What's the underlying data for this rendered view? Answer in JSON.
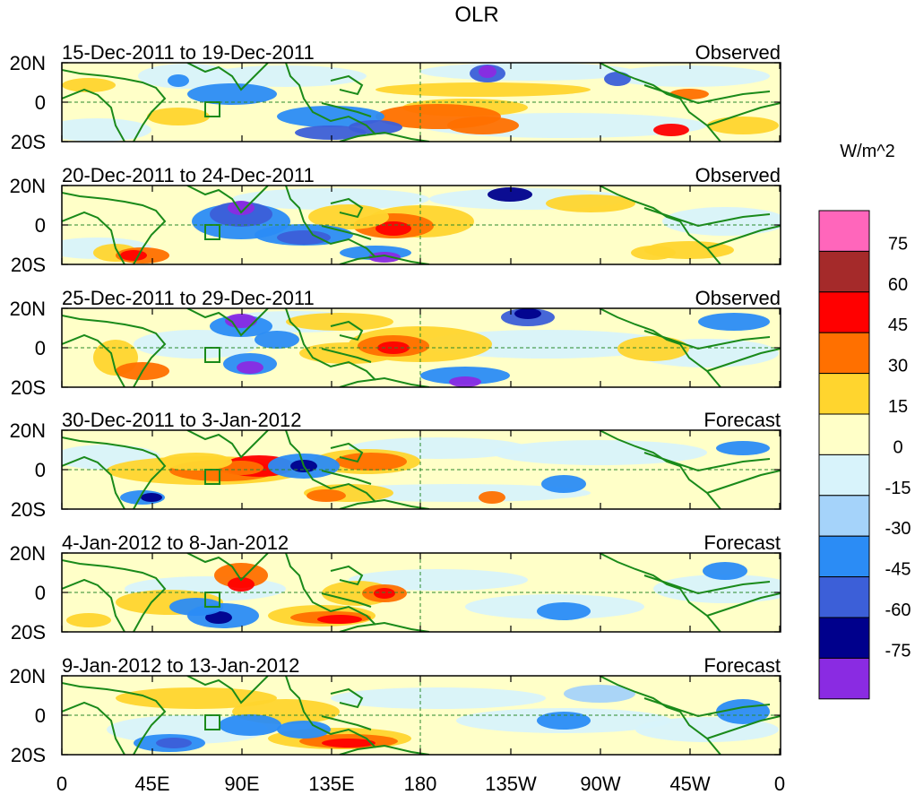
{
  "title": "OLR",
  "units_label": "W/m^2",
  "lat_labels": [
    "20N",
    "0",
    "20S"
  ],
  "lon_labels": [
    "0",
    "45E",
    "90E",
    "135E",
    "180",
    "135W",
    "90W",
    "45W",
    "0"
  ],
  "panels": [
    {
      "date_range": "15-Dec-2011 to 19-Dec-2011",
      "kind": "Observed"
    },
    {
      "date_range": "20-Dec-2011 to 24-Dec-2011",
      "kind": "Observed"
    },
    {
      "date_range": "25-Dec-2011 to 29-Dec-2011",
      "kind": "Observed"
    },
    {
      "date_range": "30-Dec-2011 to 3-Jan-2012",
      "kind": "Forecast"
    },
    {
      "date_range": "4-Jan-2012 to 8-Jan-2012",
      "kind": "Forecast"
    },
    {
      "date_range": "9-Jan-2012 to 13-Jan-2012",
      "kind": "Forecast"
    }
  ],
  "colorbar": {
    "colors": [
      "#ff66bb",
      "#a52a2a",
      "#ff0000",
      "#ff7000",
      "#ffd52e",
      "#ffffc8",
      "#d8f3fb",
      "#a5d3fa",
      "#2b8cf5",
      "#3c5fd8",
      "#00008c",
      "#8a2be2"
    ],
    "labels": [
      "75",
      "60",
      "45",
      "30",
      "15",
      "0",
      "-15",
      "-30",
      "-45",
      "-60",
      "-75"
    ]
  },
  "colors": {
    "coast": "#1a8a1a",
    "gridline": "#2b8a2b",
    "ocean_background": "#ffffc8"
  }
}
